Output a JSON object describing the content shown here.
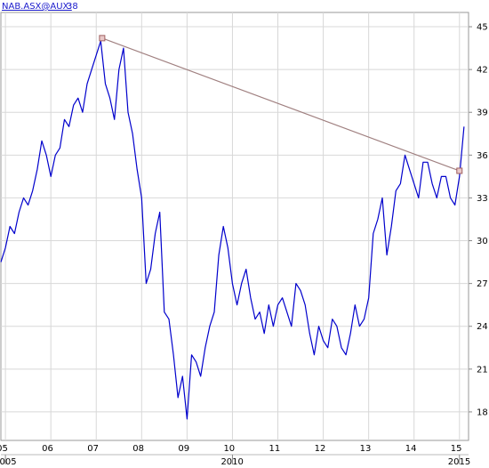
{
  "header": {
    "symbol": "NAB.ASX@AUX:",
    "last_value": "38"
  },
  "colors": {
    "price_line": "#0000cc",
    "trend_line": "#a08080",
    "grid": "#d8d8d8",
    "background": "#ffffff"
  },
  "chart_data": {
    "type": "line",
    "title": "",
    "xlabel": "",
    "ylabel": "",
    "ylim": [
      16,
      46
    ],
    "xlim": [
      2004.9,
      2015.2
    ],
    "y_ticks": [
      "45",
      "42",
      "39",
      "36",
      "33",
      "30",
      "27",
      "24",
      "21",
      "18"
    ],
    "x_tick_labels": [
      {
        "x": 2005,
        "label": "05"
      },
      {
        "x": 2006,
        "label": "06"
      },
      {
        "x": 2007,
        "label": "07"
      },
      {
        "x": 2008,
        "label": "08"
      },
      {
        "x": 2009,
        "label": "09"
      },
      {
        "x": 2010,
        "label": "10"
      },
      {
        "x": 2011,
        "label": "11"
      },
      {
        "x": 2012,
        "label": "12"
      },
      {
        "x": 2013,
        "label": "13"
      },
      {
        "x": 2014,
        "label": "14"
      },
      {
        "x": 2015,
        "label": "15"
      }
    ],
    "year_labels": [
      {
        "x": 2005,
        "label": "2005"
      },
      {
        "x": 2010,
        "label": "2010"
      },
      {
        "x": 2015,
        "label": "2015"
      }
    ],
    "grid": true,
    "series": [
      {
        "x": [
          2004.9,
          2005.0,
          2005.1,
          2005.2,
          2005.3,
          2005.4,
          2005.5,
          2005.6,
          2005.7,
          2005.8,
          2005.9,
          2006.0,
          2006.1,
          2006.2,
          2006.3,
          2006.4,
          2006.5,
          2006.6,
          2006.7,
          2006.8,
          2006.9,
          2007.0,
          2007.1,
          2007.2,
          2007.3,
          2007.4,
          2007.5,
          2007.6,
          2007.7,
          2007.8,
          2007.9,
          2008.0,
          2008.1,
          2008.2,
          2008.3,
          2008.4,
          2008.5,
          2008.6,
          2008.7,
          2008.8,
          2008.9,
          2009.0,
          2009.1,
          2009.2,
          2009.3,
          2009.4,
          2009.5,
          2009.6,
          2009.7,
          2009.8,
          2009.9,
          2010.0,
          2010.1,
          2010.2,
          2010.3,
          2010.4,
          2010.5,
          2010.6,
          2010.7,
          2010.8,
          2010.9,
          2011.0,
          2011.1,
          2011.2,
          2011.3,
          2011.4,
          2011.5,
          2011.6,
          2011.7,
          2011.8,
          2011.9,
          2012.0,
          2012.1,
          2012.2,
          2012.3,
          2012.4,
          2012.5,
          2012.6,
          2012.7,
          2012.8,
          2012.9,
          2013.0,
          2013.1,
          2013.2,
          2013.3,
          2013.4,
          2013.5,
          2013.6,
          2013.7,
          2013.8,
          2013.9,
          2014.0,
          2014.1,
          2014.2,
          2014.3,
          2014.4,
          2014.5,
          2014.6,
          2014.7,
          2014.8,
          2014.9,
          2015.0,
          2015.1
        ],
        "values": [
          28.5,
          29.5,
          31.0,
          30.5,
          32.0,
          33.0,
          32.5,
          33.5,
          35.0,
          37.0,
          36.0,
          34.5,
          36.0,
          36.5,
          38.5,
          38.0,
          39.5,
          40.0,
          39.0,
          41.0,
          42.0,
          43.0,
          44.0,
          41.0,
          40.0,
          38.5,
          42.0,
          43.5,
          39.0,
          37.5,
          35.0,
          33.0,
          27.0,
          28.0,
          30.5,
          32.0,
          25.0,
          24.5,
          22.0,
          19.0,
          20.5,
          17.5,
          22.0,
          21.5,
          20.5,
          22.5,
          24.0,
          25.0,
          29.0,
          31.0,
          29.5,
          27.0,
          25.5,
          27.0,
          28.0,
          26.0,
          24.5,
          25.0,
          23.5,
          25.5,
          24.0,
          25.5,
          26.0,
          25.0,
          24.0,
          27.0,
          26.5,
          25.5,
          23.5,
          22.0,
          24.0,
          23.0,
          22.5,
          24.5,
          24.0,
          22.5,
          22.0,
          23.5,
          25.5,
          24.0,
          24.5,
          26.0,
          30.5,
          31.5,
          33.0,
          29.0,
          31.0,
          33.5,
          34.0,
          36.0,
          35.0,
          34.0,
          33.0,
          35.5,
          35.5,
          34.0,
          33.0,
          34.5,
          34.5,
          33.0,
          32.5,
          34.5,
          38.0
        ]
      },
      {
        "x": [
          2007.13,
          2015.0
        ],
        "values": [
          44.2,
          34.9
        ]
      }
    ]
  }
}
